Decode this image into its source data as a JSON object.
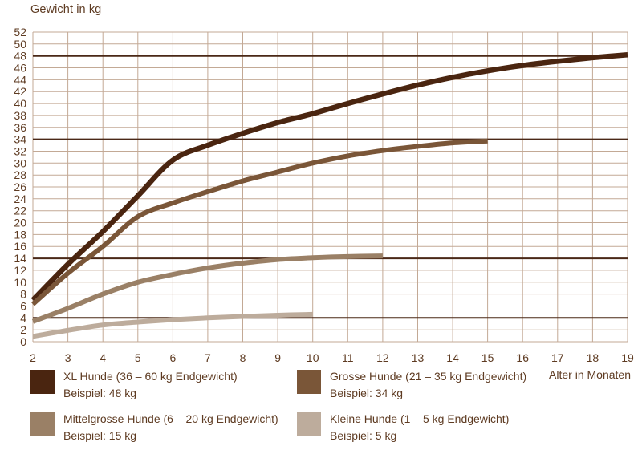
{
  "colors": {
    "background": "#ffffff",
    "grid": "#c3a995",
    "reference_line": "#4a2817",
    "text": "#5e3b22"
  },
  "chart_data": {
    "type": "line",
    "title": "",
    "ylabel": "Gewicht in kg",
    "xlabel": "Alter in Monaten",
    "xlim": [
      2,
      19
    ],
    "ylim": [
      0,
      52
    ],
    "x_ticks": [
      2,
      3,
      4,
      5,
      6,
      7,
      8,
      9,
      10,
      11,
      12,
      13,
      14,
      15,
      16,
      17,
      18,
      19
    ],
    "y_ticks": [
      0,
      2,
      4,
      6,
      8,
      10,
      12,
      14,
      16,
      18,
      20,
      22,
      24,
      26,
      28,
      30,
      32,
      34,
      36,
      38,
      40,
      42,
      44,
      46,
      48,
      50,
      52
    ],
    "grid": true,
    "legend_position": "bottom",
    "reference_lines": [
      48,
      34,
      14,
      4
    ],
    "series": [
      {
        "name": "XL Hunde (36 – 60 kg Endgewicht)",
        "example": "Beispiel: 48 kg",
        "color": "#4a2510",
        "stroke_width": 6.5,
        "x": [
          2,
          3,
          4,
          5,
          6,
          7,
          8,
          9,
          10,
          11,
          12,
          13,
          14,
          15,
          16,
          17,
          18,
          19
        ],
        "values": [
          7,
          13,
          18.5,
          24.5,
          30.5,
          33,
          35,
          36.8,
          38.3,
          40,
          41.6,
          43.1,
          44.4,
          45.5,
          46.4,
          47.1,
          47.7,
          48.2
        ]
      },
      {
        "name": "Grosse Hunde (21 – 35 kg Endgewicht)",
        "example": "Beispiel: 34 kg",
        "color": "#7a5638",
        "stroke_width": 6,
        "x": [
          2,
          3,
          4,
          5,
          6,
          7,
          8,
          9,
          10,
          11,
          12,
          13,
          14,
          15
        ],
        "values": [
          6.3,
          11.5,
          16,
          21,
          23.3,
          25.2,
          27,
          28.5,
          30,
          31.2,
          32.1,
          32.8,
          33.4,
          33.7
        ]
      },
      {
        "name": "Mittelgrosse Hunde (6 – 20 kg Endgewicht)",
        "example": "Beispiel: 15 kg",
        "color": "#9a8066",
        "stroke_width": 6,
        "x": [
          2,
          3,
          4,
          5,
          6,
          7,
          8,
          9,
          10,
          11,
          12
        ],
        "values": [
          3.4,
          5.6,
          8,
          10,
          11.3,
          12.4,
          13.2,
          13.8,
          14.1,
          14.3,
          14.4
        ]
      },
      {
        "name": "Kleine Hunde (1 – 5 kg Endgewicht)",
        "example": "Beispiel: 5 kg",
        "color": "#bdac9c",
        "stroke_width": 6,
        "x": [
          2,
          3,
          4,
          5,
          6,
          7,
          8,
          9,
          10
        ],
        "values": [
          0.9,
          1.9,
          2.8,
          3.3,
          3.7,
          4.0,
          4.25,
          4.45,
          4.6
        ]
      }
    ]
  }
}
